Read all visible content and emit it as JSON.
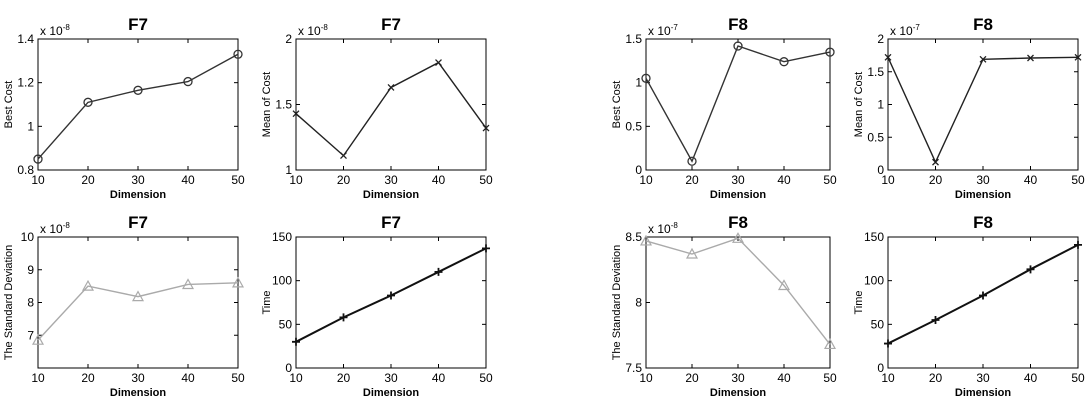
{
  "chart_data": [
    {
      "type": "line",
      "title": "F7",
      "xlabel": "Dimension",
      "ylabel": "Best Cost",
      "x": [
        10,
        20,
        30,
        40,
        50
      ],
      "xticks": [
        "10",
        "20",
        "30",
        "40",
        "50"
      ],
      "ylim": [
        0.8,
        1.4
      ],
      "yticks": [
        "0.8",
        "1",
        "1.2",
        "1.4"
      ],
      "exponent_base": "x 10",
      "exponent_power": "-8",
      "series": [
        {
          "values": [
            0.85,
            1.11,
            1.165,
            1.205,
            1.33
          ],
          "color": "#333333",
          "marker": "circle"
        }
      ]
    },
    {
      "type": "line",
      "title": "F7",
      "xlabel": "Dimension",
      "ylabel": "Mean of Cost",
      "x": [
        10,
        20,
        30,
        40,
        50
      ],
      "xticks": [
        "10",
        "20",
        "30",
        "40",
        "50"
      ],
      "ylim": [
        1,
        2
      ],
      "yticks": [
        "1",
        "1.5",
        "2"
      ],
      "exponent_base": "x 10",
      "exponent_power": "-8",
      "series": [
        {
          "values": [
            1.43,
            1.11,
            1.63,
            1.82,
            1.32
          ],
          "color": "#222222",
          "marker": "x"
        }
      ]
    },
    {
      "type": "line",
      "title": "F8",
      "xlabel": "Dimension",
      "ylabel": "Best Cost",
      "x": [
        10,
        20,
        30,
        40,
        50
      ],
      "xticks": [
        "10",
        "20",
        "30",
        "40",
        "50"
      ],
      "ylim": [
        0,
        1.5
      ],
      "yticks": [
        "0",
        "0.5",
        "1",
        "1.5"
      ],
      "exponent_base": "x 10",
      "exponent_power": "-7",
      "series": [
        {
          "values": [
            1.05,
            0.1,
            1.42,
            1.24,
            1.35
          ],
          "color": "#333333",
          "marker": "circle"
        }
      ]
    },
    {
      "type": "line",
      "title": "F8",
      "xlabel": "Dimension",
      "ylabel": "Mean of Cost",
      "x": [
        10,
        20,
        30,
        40,
        50
      ],
      "xticks": [
        "10",
        "20",
        "30",
        "40",
        "50"
      ],
      "ylim": [
        0,
        2
      ],
      "yticks": [
        "0",
        "0.5",
        "1",
        "1.5",
        "2"
      ],
      "exponent_base": "x 10",
      "exponent_power": "-7",
      "series": [
        {
          "values": [
            1.72,
            0.12,
            1.69,
            1.71,
            1.72
          ],
          "color": "#222222",
          "marker": "x"
        }
      ]
    },
    {
      "type": "line",
      "title": "F7",
      "xlabel": "Dimension",
      "ylabel": "The Standard Deviation",
      "x": [
        10,
        20,
        30,
        40,
        50
      ],
      "xticks": [
        "10",
        "20",
        "30",
        "40",
        "50"
      ],
      "ylim": [
        6,
        10
      ],
      "yticks": [
        "7",
        "8",
        "9",
        "10"
      ],
      "exponent_base": "x 10",
      "exponent_power": "-8",
      "series": [
        {
          "values": [
            6.85,
            8.5,
            8.18,
            8.55,
            8.6
          ],
          "color": "#aaaaaa",
          "marker": "triangle"
        }
      ]
    },
    {
      "type": "line",
      "title": "F7",
      "xlabel": "Dimension",
      "ylabel": "Time",
      "x": [
        10,
        20,
        30,
        40,
        50
      ],
      "xticks": [
        "10",
        "20",
        "30",
        "40",
        "50"
      ],
      "ylim": [
        0,
        150
      ],
      "yticks": [
        "0",
        "50",
        "100",
        "150"
      ],
      "exponent_base": "",
      "exponent_power": "",
      "series": [
        {
          "values": [
            30,
            58,
            83,
            110,
            137
          ],
          "color": "#111111",
          "marker": "plus"
        }
      ]
    },
    {
      "type": "line",
      "title": "F8",
      "xlabel": "Dimension",
      "ylabel": "The Standard Deviation",
      "x": [
        10,
        20,
        30,
        40,
        50
      ],
      "xticks": [
        "10",
        "20",
        "30",
        "40",
        "50"
      ],
      "ylim": [
        7.5,
        8.5
      ],
      "yticks": [
        "7.5",
        "8",
        "8.5"
      ],
      "exponent_base": "x 10",
      "exponent_power": "-8",
      "series": [
        {
          "values": [
            8.47,
            8.37,
            8.49,
            8.13,
            7.68
          ],
          "color": "#aaaaaa",
          "marker": "triangle"
        }
      ]
    },
    {
      "type": "line",
      "title": "F8",
      "xlabel": "Dimension",
      "ylabel": "Time",
      "x": [
        10,
        20,
        30,
        40,
        50
      ],
      "xticks": [
        "10",
        "20",
        "30",
        "40",
        "50"
      ],
      "ylim": [
        0,
        150
      ],
      "yticks": [
        "0",
        "50",
        "100",
        "150"
      ],
      "exponent_base": "",
      "exponent_power": "",
      "series": [
        {
          "values": [
            28,
            55,
            83,
            113,
            141
          ],
          "color": "#111111",
          "marker": "plus"
        }
      ]
    }
  ]
}
